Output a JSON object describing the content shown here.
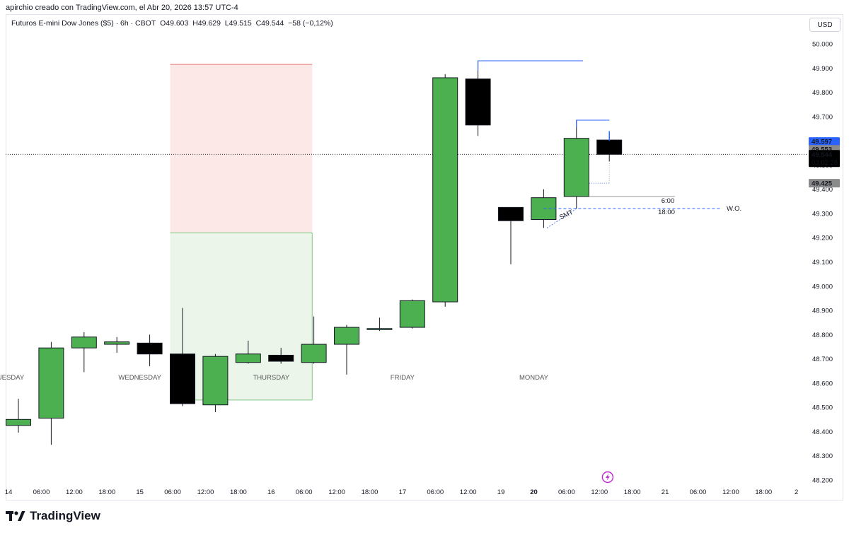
{
  "header": {
    "creator_line": "apirchio creado con TradingView.com, el Abr 20, 2026 13:57 UTC-4",
    "symbol": "Futuros E-mini Dow Jones ($5) · 6h · CBOT",
    "open": "O49.603",
    "high": "H49.629",
    "low": "L49.515",
    "close": "C49.544",
    "change": "−58 (−0,12%)"
  },
  "currency_button": "USD",
  "brand": "TradingView",
  "icons": {
    "logo": "tradingview-logo-icon",
    "lightning": "lightning-icon"
  },
  "colors": {
    "up": "#4caf50",
    "down": "#000000",
    "stop_zone": "#fde8e8",
    "target_zone": "#ebf5ea",
    "label_blue": "#2962ff",
    "label_gray": "#8a8a8a",
    "liquidity_line": "#2962ff"
  },
  "price_labels": [
    {
      "text": "49.597",
      "price": 49597,
      "color": "#2962ff"
    },
    {
      "text": "49.553",
      "price": 49553,
      "color": "#8a8a8a"
    },
    {
      "text": "49.544",
      "sub": "03:02:28",
      "price": 49544,
      "color": "#000000"
    },
    {
      "text": "49.425",
      "price": 49425,
      "color": "#8a8a8a"
    }
  ],
  "annotations": {
    "six": "6:00",
    "eighteen": "18:00",
    "wo": "W.O.",
    "smt": "SMT"
  },
  "chart_data": {
    "type": "candlestick",
    "title": "Futuros E-mini Dow Jones ($5) · 6h · CBOT",
    "ylim": [
      48170,
      50100
    ],
    "y_ticks": [
      "48.200",
      "48.300",
      "48.400",
      "48.500",
      "48.600",
      "48.700",
      "48.800",
      "48.900",
      "49.000",
      "49.100",
      "49.200",
      "49.300",
      "49.400",
      "49.500",
      "49.600",
      "49.700",
      "49.800",
      "49.900",
      "50.000"
    ],
    "y_tick_values": [
      48200,
      48300,
      48400,
      48500,
      48600,
      48700,
      48800,
      48900,
      49000,
      49100,
      49200,
      49300,
      49400,
      49500,
      49600,
      49700,
      49800,
      49900,
      50000
    ],
    "x_ticks": [
      "14",
      "06:00",
      "12:00",
      "18:00",
      "15",
      "06:00",
      "12:00",
      "18:00",
      "16",
      "06:00",
      "12:00",
      "18:00",
      "17",
      "06:00",
      "12:00",
      "19",
      "20",
      "06:00",
      "12:00",
      "18:00",
      "21",
      "06:00",
      "12:00",
      "18:00",
      "2"
    ],
    "x_tick_index": [
      -0.3,
      0.7,
      1.7,
      2.7,
      3.7,
      4.7,
      5.7,
      6.7,
      7.7,
      8.7,
      9.7,
      10.7,
      11.7,
      12.7,
      13.7,
      14.7,
      15.7,
      16.7,
      17.7,
      18.7,
      19.7,
      20.7,
      21.7,
      22.7,
      23.7
    ],
    "day_labels": [
      {
        "text": "TUESDAY",
        "index": -0.3
      },
      {
        "text": "WEDNESDAY",
        "index": 3.7
      },
      {
        "text": "THURSDAY",
        "index": 7.7
      },
      {
        "text": "FRIDAY",
        "index": 11.7
      },
      {
        "text": "MONDAY",
        "index": 15.7
      }
    ],
    "candles": [
      {
        "o": 48425,
        "h": 48535,
        "l": 48395,
        "c": 48450
      },
      {
        "o": 48455,
        "h": 48770,
        "l": 48345,
        "c": 48745
      },
      {
        "o": 48745,
        "h": 48810,
        "l": 48645,
        "c": 48790
      },
      {
        "o": 48760,
        "h": 48790,
        "l": 48725,
        "c": 48770
      },
      {
        "o": 48765,
        "h": 48800,
        "l": 48670,
        "c": 48720
      },
      {
        "o": 48720,
        "h": 48910,
        "l": 48505,
        "c": 48515
      },
      {
        "o": 48510,
        "h": 48720,
        "l": 48480,
        "c": 48710
      },
      {
        "o": 48685,
        "h": 48775,
        "l": 48680,
        "c": 48720
      },
      {
        "o": 48715,
        "h": 48745,
        "l": 48680,
        "c": 48690
      },
      {
        "o": 48685,
        "h": 48875,
        "l": 48680,
        "c": 48760
      },
      {
        "o": 48760,
        "h": 48840,
        "l": 48635,
        "c": 48830
      },
      {
        "o": 48825,
        "h": 48870,
        "l": 48815,
        "c": 48825
      },
      {
        "o": 48830,
        "h": 48945,
        "l": 48825,
        "c": 48940
      },
      {
        "o": 48935,
        "h": 49875,
        "l": 48915,
        "c": 49860
      },
      {
        "o": 49855,
        "h": 49930,
        "l": 49620,
        "c": 49665
      },
      {
        "o": 49325,
        "h": 49325,
        "l": 49090,
        "c": 49270
      },
      {
        "o": 49275,
        "h": 49400,
        "l": 49240,
        "c": 49365
      },
      {
        "o": 49370,
        "h": 49685,
        "l": 49320,
        "c": 49610
      },
      {
        "o": 49603,
        "h": 49629,
        "l": 49515,
        "c": 49544
      }
    ],
    "zones": {
      "stop": [
        49915,
        49220
      ],
      "target": [
        49220,
        48530
      ],
      "start_index": 5,
      "end_index": 8.95
    }
  }
}
